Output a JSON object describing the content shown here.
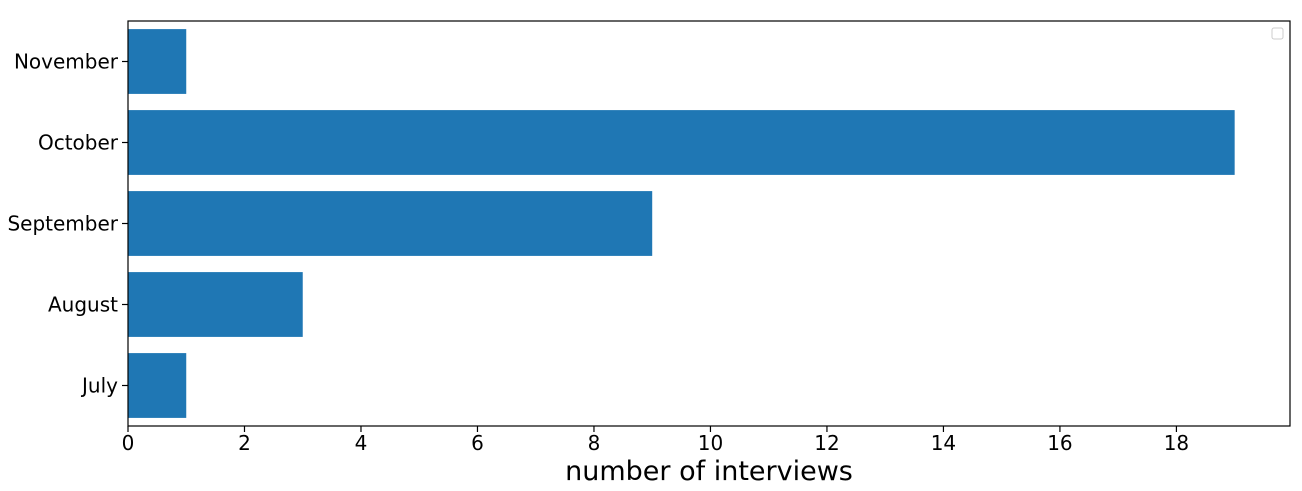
{
  "chart_data": {
    "type": "bar",
    "orientation": "horizontal",
    "categories": [
      "July",
      "August",
      "September",
      "October",
      "November"
    ],
    "values": [
      1,
      3,
      9,
      19,
      1
    ],
    "title": "",
    "xlabel": "number of interviews",
    "ylabel": "",
    "xlim": [
      0,
      19.95
    ],
    "x_ticks": [
      0,
      2,
      4,
      6,
      8,
      10,
      12,
      14,
      16,
      18
    ],
    "grid": false,
    "legend": {
      "position": "top-right",
      "entries": []
    },
    "colors": {
      "bar": "#1f77b4",
      "axis": "#000000"
    }
  }
}
